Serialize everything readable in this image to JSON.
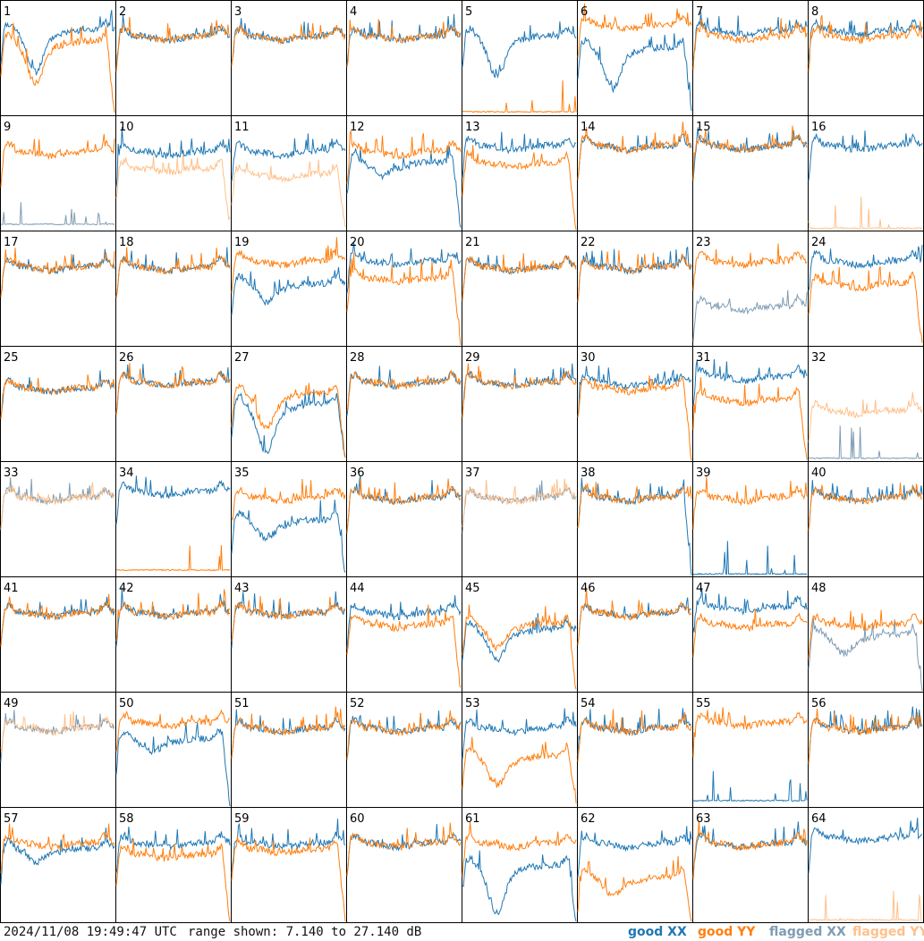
{
  "timestamp": "2024/11/08 19:49:47 UTC",
  "range_text": "range shown: 7.140 to 27.140 dB",
  "legend": {
    "good_xx": "good XX",
    "good_yy": "good YY",
    "flagged_xx": "flagged XX",
    "flagged_yy": "flagged YY"
  },
  "colors": {
    "good_xx": "#1f77b4",
    "good_yy": "#ff7f0e",
    "flagged_xx": "#7f9cb4",
    "flagged_yy": "#ffc08a"
  },
  "chart_data": {
    "type": "line",
    "grid": "8x8 small multiples",
    "ylim": [
      7.14,
      27.14
    ],
    "panels": [
      {
        "id": "1",
        "xx": "good",
        "yy": "good",
        "xx_level": 22,
        "yy_level": 20,
        "xx_dip": 15,
        "yy_dip": 13,
        "yy_drop": true
      },
      {
        "id": "2",
        "xx": "good",
        "yy": "good",
        "xx_level": 21,
        "yy_level": 21
      },
      {
        "id": "3",
        "xx": "good",
        "yy": "good",
        "xx_level": 21,
        "yy_level": 21
      },
      {
        "id": "4",
        "xx": "good",
        "yy": "good",
        "xx_level": 21,
        "yy_level": 21
      },
      {
        "id": "5",
        "xx": "good",
        "yy": "good",
        "xx_level": 21,
        "yy_level": 7.5,
        "xx_dip": 14
      },
      {
        "id": "6",
        "xx": "good",
        "yy": "good",
        "xx_level": 19,
        "yy_level": 23,
        "xx_dip": 12,
        "xx_drop": true
      },
      {
        "id": "7",
        "xx": "good",
        "yy": "good",
        "xx_level": 22,
        "yy_level": 21
      },
      {
        "id": "8",
        "xx": "good",
        "yy": "good",
        "xx_level": 22,
        "yy_level": 21
      },
      {
        "id": "9",
        "xx": "flagged",
        "yy": "good",
        "xx_level": 8,
        "yy_level": 21
      },
      {
        "id": "10",
        "xx": "good",
        "yy": "flagged",
        "xx_level": 21,
        "yy_level": 18,
        "yy_drop": true
      },
      {
        "id": "11",
        "xx": "good",
        "yy": "flagged",
        "xx_level": 21,
        "yy_level": 17,
        "yy_drop": true
      },
      {
        "id": "12",
        "xx": "good",
        "yy": "good",
        "xx_level": 19,
        "yy_level": 21,
        "xx_dip": 17,
        "xx_drop": true
      },
      {
        "id": "13",
        "xx": "good",
        "yy": "good",
        "xx_level": 22,
        "yy_level": 19,
        "yy_drop": true
      },
      {
        "id": "14",
        "xx": "good",
        "yy": "good",
        "xx_level": 22,
        "yy_level": 22
      },
      {
        "id": "15",
        "xx": "good",
        "yy": "good",
        "xx_level": 22,
        "yy_level": 22
      },
      {
        "id": "16",
        "xx": "good",
        "yy": "flagged",
        "xx_level": 22,
        "yy_level": 7.3
      },
      {
        "id": "17",
        "xx": "good",
        "yy": "good",
        "xx_level": 21,
        "yy_level": 21
      },
      {
        "id": "18",
        "xx": "good",
        "yy": "good",
        "xx_level": 21,
        "yy_level": 21
      },
      {
        "id": "19",
        "xx": "good",
        "yy": "good",
        "xx_level": 18,
        "yy_level": 22,
        "xx_dip": 15
      },
      {
        "id": "20",
        "xx": "good",
        "yy": "good",
        "xx_level": 22,
        "yy_level": 19,
        "yy_drop": true
      },
      {
        "id": "21",
        "xx": "good",
        "yy": "good",
        "xx_level": 21,
        "yy_level": 21
      },
      {
        "id": "22",
        "xx": "good",
        "yy": "good",
        "xx_level": 21,
        "yy_level": 21
      },
      {
        "id": "23",
        "xx": "flagged",
        "yy": "good",
        "xx_level": 14,
        "yy_level": 22
      },
      {
        "id": "24",
        "xx": "good",
        "yy": "good",
        "xx_level": 22,
        "yy_level": 18,
        "yy_drop": true
      },
      {
        "id": "25",
        "xx": "good",
        "yy": "good",
        "xx_level": 20,
        "yy_level": 20
      },
      {
        "id": "26",
        "xx": "good",
        "yy": "good",
        "xx_level": 21,
        "yy_level": 21
      },
      {
        "id": "27",
        "xx": "good",
        "yy": "good",
        "xx_level": 17,
        "yy_level": 19,
        "xx_dip": 9,
        "yy_dip": 13,
        "xx_drop": true,
        "yy_drop": true
      },
      {
        "id": "28",
        "xx": "good",
        "yy": "good",
        "xx_level": 21,
        "yy_level": 21
      },
      {
        "id": "29",
        "xx": "good",
        "yy": "good",
        "xx_level": 21,
        "yy_level": 21
      },
      {
        "id": "30",
        "xx": "good",
        "yy": "good",
        "xx_level": 21,
        "yy_level": 20,
        "yy_drop": true
      },
      {
        "id": "31",
        "xx": "good",
        "yy": "good",
        "xx_level": 22,
        "yy_level": 18,
        "yy_drop": true
      },
      {
        "id": "32",
        "xx": "flagged",
        "yy": "flagged",
        "xx_level": 7.4,
        "yy_level": 16
      },
      {
        "id": "33",
        "xx": "flagged",
        "yy": "flagged",
        "xx_level": 21,
        "yy_level": 21
      },
      {
        "id": "34",
        "xx": "good",
        "yy": "good",
        "xx_level": 22,
        "yy_level": 8
      },
      {
        "id": "35",
        "xx": "good",
        "yy": "good",
        "xx_level": 17,
        "yy_level": 21,
        "xx_dip": 14,
        "xx_drop": true
      },
      {
        "id": "36",
        "xx": "good",
        "yy": "good",
        "xx_level": 21,
        "yy_level": 21
      },
      {
        "id": "37",
        "xx": "flagged",
        "yy": "flagged",
        "xx_level": 21,
        "yy_level": 21
      },
      {
        "id": "38",
        "xx": "good",
        "yy": "good",
        "xx_level": 21,
        "yy_level": 21,
        "xx_drop": true
      },
      {
        "id": "39",
        "xx": "good",
        "yy": "good",
        "xx_level": 7.3,
        "yy_level": 21
      },
      {
        "id": "40",
        "xx": "good",
        "yy": "good",
        "xx_level": 21,
        "yy_level": 21
      },
      {
        "id": "41",
        "xx": "good",
        "yy": "good",
        "xx_level": 21,
        "yy_level": 21
      },
      {
        "id": "42",
        "xx": "good",
        "yy": "good",
        "xx_level": 21,
        "yy_level": 21
      },
      {
        "id": "43",
        "xx": "good",
        "yy": "good",
        "xx_level": 21,
        "yy_level": 21
      },
      {
        "id": "44",
        "xx": "good",
        "yy": "good",
        "xx_level": 21,
        "yy_level": 19,
        "yy_drop": true
      },
      {
        "id": "45",
        "xx": "good",
        "yy": "good",
        "xx_level": 18,
        "yy_level": 19,
        "xx_dip": 13,
        "yy_dip": 15,
        "yy_drop": true
      },
      {
        "id": "46",
        "xx": "good",
        "yy": "good",
        "xx_level": 21,
        "yy_level": 21
      },
      {
        "id": "47",
        "xx": "good",
        "yy": "good",
        "xx_level": 22,
        "yy_level": 19
      },
      {
        "id": "48",
        "xx": "flagged",
        "yy": "good",
        "xx_level": 17,
        "yy_level": 19,
        "xx_dip": 14,
        "xx_drop": true
      },
      {
        "id": "49",
        "xx": "flagged",
        "yy": "flagged",
        "xx_level": 21,
        "yy_level": 21
      },
      {
        "id": "50",
        "xx": "good",
        "yy": "good",
        "xx_level": 19,
        "yy_level": 22,
        "xx_dip": 17,
        "xx_drop": true
      },
      {
        "id": "51",
        "xx": "good",
        "yy": "good",
        "xx_level": 21,
        "yy_level": 21
      },
      {
        "id": "52",
        "xx": "good",
        "yy": "good",
        "xx_level": 21,
        "yy_level": 21
      },
      {
        "id": "53",
        "xx": "good",
        "yy": "good",
        "xx_level": 21,
        "yy_level": 16,
        "yy_dip": 11,
        "yy_drop": true
      },
      {
        "id": "54",
        "xx": "good",
        "yy": "good",
        "xx_level": 21,
        "yy_level": 21
      },
      {
        "id": "55",
        "xx": "good",
        "yy": "good",
        "xx_level": 8,
        "yy_level": 22
      },
      {
        "id": "56",
        "xx": "good",
        "yy": "good",
        "xx_level": 21,
        "yy_level": 21
      },
      {
        "id": "57",
        "xx": "good",
        "yy": "good",
        "xx_level": 20,
        "yy_level": 21,
        "xx_dip": 18
      },
      {
        "id": "58",
        "xx": "good",
        "yy": "good",
        "xx_level": 21,
        "yy_level": 19,
        "yy_drop": true
      },
      {
        "id": "59",
        "xx": "good",
        "yy": "good",
        "xx_level": 21,
        "yy_level": 20,
        "yy_drop": true
      },
      {
        "id": "60",
        "xx": "good",
        "yy": "good",
        "xx_level": 21,
        "yy_level": 21
      },
      {
        "id": "61",
        "xx": "good",
        "yy": "good",
        "xx_level": 17,
        "yy_level": 21,
        "xx_dip": 9,
        "xx_drop": true
      },
      {
        "id": "62",
        "xx": "good",
        "yy": "good",
        "xx_level": 21,
        "yy_level": 15,
        "yy_dip": 12,
        "yy_drop": true
      },
      {
        "id": "63",
        "xx": "good",
        "yy": "good",
        "xx_level": 21,
        "yy_level": 21
      },
      {
        "id": "64",
        "xx": "good",
        "yy": "flagged",
        "xx_level": 22,
        "yy_level": 7.3
      }
    ]
  }
}
